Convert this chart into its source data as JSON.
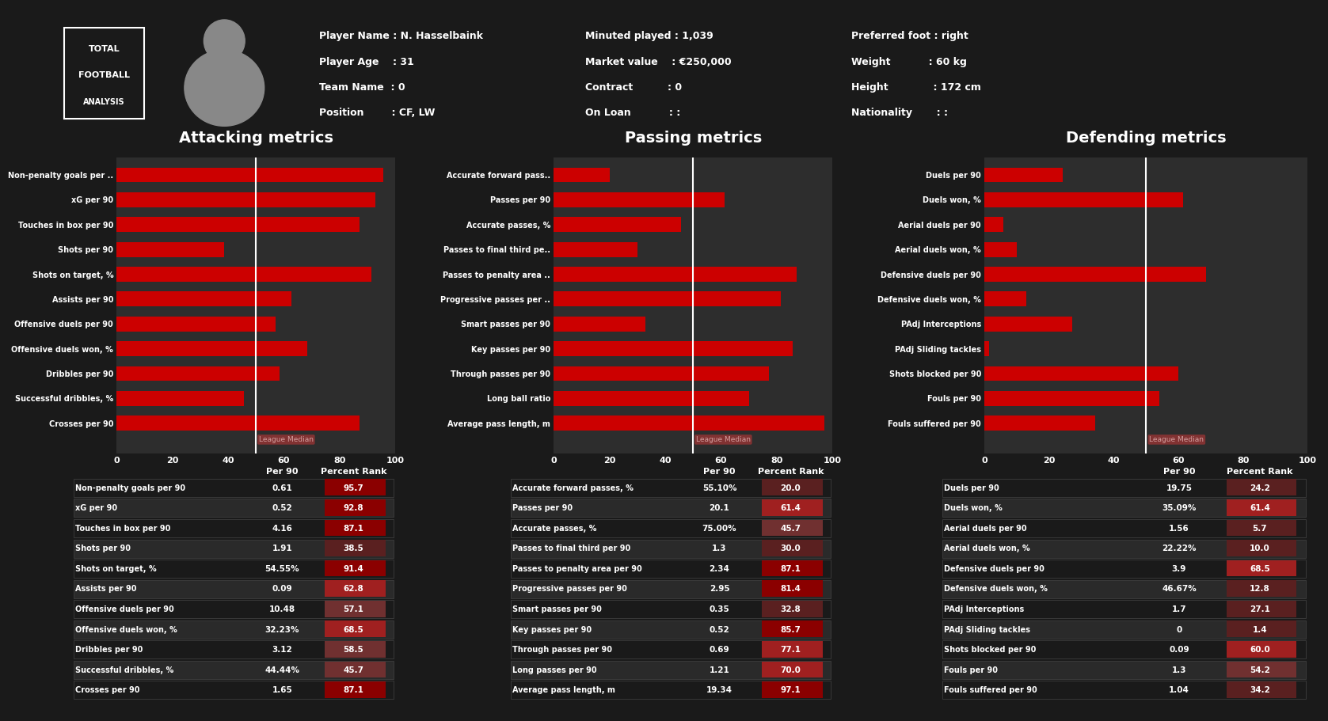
{
  "bg_dark": "#1a1a1a",
  "bg_panel": "#2a2a2a",
  "bg_card": "#222222",
  "text_white": "#ffffff",
  "text_cyan": "#00ffff",
  "bar_red": "#cc0000",
  "bar_highlight": "#ff4444",
  "league_median_color": "#c8a0a0",
  "header_bg": "#111111",
  "player_info": {
    "name": "N. Hasselbaink",
    "age": "31",
    "team": "0",
    "position": "CF, LW",
    "minutes": "1,039",
    "market_value": "€250,000",
    "contract": "0",
    "on_loan": ":",
    "preferred_foot": "right",
    "weight": "60 kg",
    "height": "172 cm",
    "nationality": ":"
  },
  "attacking": {
    "title": "Attacking metrics",
    "labels": [
      "Non-penalty goals per ..",
      "xG per 90",
      "Touches in box per 90",
      "Shots per 90",
      "Shots on target, %",
      "Assists per 90",
      "Offensive duels per 90",
      "Offensive duels won, %",
      "Dribbles per 90",
      "Successful dribbles, %",
      "Crosses per 90"
    ],
    "values": [
      95.7,
      92.8,
      87.1,
      38.5,
      91.4,
      62.8,
      57.1,
      68.5,
      58.5,
      45.7,
      87.1
    ],
    "league_median": 50,
    "table_labels": [
      "Non-penalty goals per 90",
      "xG per 90",
      "Touches in box per 90",
      "Shots per 90",
      "Shots on target, %",
      "Assists per 90",
      "Offensive duels per 90",
      "Offensive duels won, %",
      "Dribbles per 90",
      "Successful dribbles, %",
      "Crosses per 90"
    ],
    "per90": [
      "0.61",
      "0.52",
      "4.16",
      "1.91",
      "54.55%",
      "0.09",
      "10.48",
      "32.23%",
      "3.12",
      "44.44%",
      "1.65"
    ],
    "pct_rank": [
      95.7,
      92.8,
      87.1,
      38.5,
      91.4,
      62.8,
      57.1,
      68.5,
      58.5,
      45.7,
      87.1
    ]
  },
  "passing": {
    "title": "Passing metrics",
    "labels": [
      "Accurate forward pass..",
      "Passes per 90",
      "Accurate passes, %",
      "Passes to final third pe..",
      "Passes to penalty area ..",
      "Progressive passes per ..",
      "Smart passes per 90",
      "Key passes per 90",
      "Through passes per 90",
      "Long ball ratio",
      "Average pass length, m"
    ],
    "values": [
      20.0,
      61.4,
      45.7,
      30.0,
      87.1,
      81.4,
      32.8,
      85.7,
      77.1,
      70.0,
      97.1
    ],
    "league_median": 50,
    "table_labels": [
      "Accurate forward passes, %",
      "Passes per 90",
      "Accurate passes, %",
      "Passes to final third per 90",
      "Passes to penalty area per 90",
      "Progressive passes per 90",
      "Smart passes per 90",
      "Key passes per 90",
      "Through passes per 90",
      "Long passes per 90",
      "Average pass length, m"
    ],
    "per90": [
      "55.10%",
      "20.1",
      "75.00%",
      "1.3",
      "2.34",
      "2.95",
      "0.35",
      "0.52",
      "0.69",
      "1.21",
      "19.34"
    ],
    "pct_rank": [
      20.0,
      61.4,
      45.7,
      30.0,
      87.1,
      81.4,
      32.8,
      85.7,
      77.1,
      70.0,
      97.1
    ]
  },
  "defending": {
    "title": "Defending metrics",
    "labels": [
      "Duels per 90",
      "Duels won, %",
      "Aerial duels per 90",
      "Aerial duels won, %",
      "Defensive duels per 90",
      "Defensive duels won, %",
      "PAdj Interceptions",
      "PAdj Sliding tackles",
      "Shots blocked per 90",
      "Fouls per 90",
      "Fouls suffered per 90"
    ],
    "values": [
      24.2,
      61.4,
      5.7,
      10.0,
      68.5,
      12.8,
      27.1,
      1.4,
      60.0,
      54.2,
      34.2
    ],
    "league_median": 50,
    "table_labels": [
      "Duels per 90",
      "Duels won, %",
      "Aerial duels per 90",
      "Aerial duels won, %",
      "Defensive duels per 90",
      "Defensive duels won, %",
      "PAdj Interceptions",
      "PAdj Sliding tackles",
      "Shots blocked per 90",
      "Fouls per 90",
      "Fouls suffered per 90"
    ],
    "per90": [
      "19.75",
      "35.09%",
      "1.56",
      "22.22%",
      "3.9",
      "46.67%",
      "1.7",
      "0",
      "0.09",
      "1.3",
      "1.04"
    ],
    "pct_rank": [
      24.2,
      61.4,
      5.7,
      10.0,
      68.5,
      12.8,
      27.1,
      1.4,
      60.0,
      54.2,
      34.2
    ]
  }
}
